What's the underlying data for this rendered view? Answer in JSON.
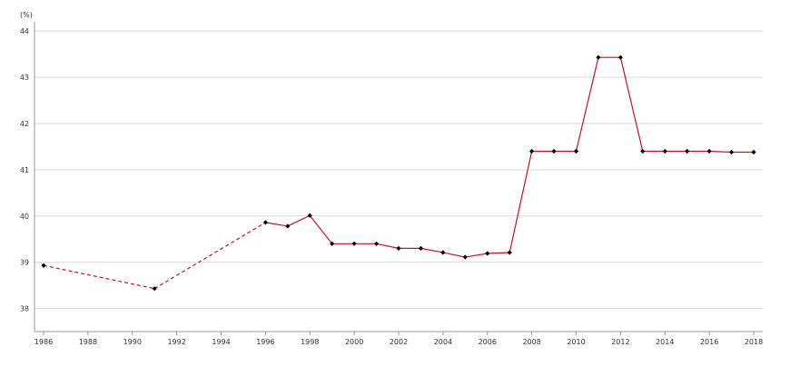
{
  "chart_data": {
    "type": "line",
    "title": "",
    "xlabel": "",
    "ylabel": "",
    "y_unit_label": "(%)",
    "xlim": [
      1986,
      2018
    ],
    "ylim": [
      37.5,
      44.2
    ],
    "x_ticks": [
      1986,
      1988,
      1990,
      1992,
      1994,
      1996,
      1998,
      2000,
      2002,
      2004,
      2006,
      2008,
      2010,
      2012,
      2014,
      2016,
      2018
    ],
    "y_ticks": [
      38,
      39,
      40,
      41,
      42,
      43,
      44
    ],
    "grid": "horizontal",
    "legend": "none",
    "series": [
      {
        "color": "#c8102e",
        "marker_color": "#000000",
        "dashed_segments": [
          [
            1986,
            1991
          ],
          [
            1991,
            1996
          ]
        ],
        "x": [
          1986,
          1991,
          1996,
          1997,
          1998,
          1999,
          2000,
          2001,
          2002,
          2003,
          2004,
          2005,
          2006,
          2007,
          2008,
          2009,
          2010,
          2011,
          2012,
          2013,
          2014,
          2015,
          2016,
          2017,
          2018
        ],
        "y": [
          38.93,
          38.43,
          39.86,
          39.78,
          40.01,
          39.4,
          39.4,
          39.4,
          39.3,
          39.3,
          39.21,
          39.11,
          39.19,
          39.21,
          41.4,
          41.4,
          41.4,
          43.43,
          43.43,
          41.4,
          41.4,
          41.4,
          41.4,
          41.38,
          41.38
        ]
      }
    ]
  }
}
